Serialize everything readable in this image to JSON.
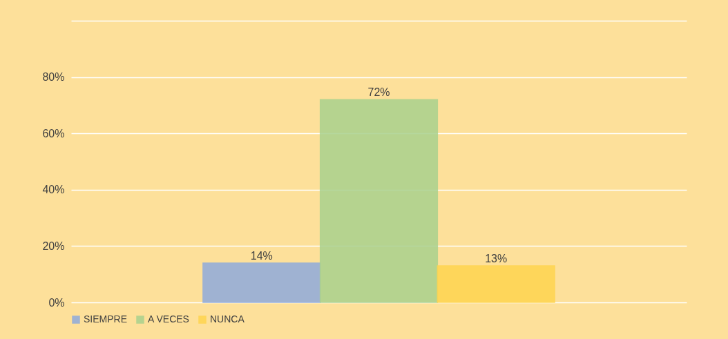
{
  "chart_data": {
    "type": "bar",
    "categories": [
      null
    ],
    "series": [
      {
        "name": "SIEMPRE",
        "color": "#8faadc",
        "values": [
          14
        ],
        "value_labels": [
          "14%"
        ]
      },
      {
        "name": "A VECES",
        "color": "#a9d18e",
        "values": [
          72
        ],
        "value_labels": [
          "72%"
        ]
      },
      {
        "name": "NUNCA",
        "color": "#ffd54f",
        "values": [
          13
        ],
        "value_labels": [
          "13%"
        ]
      }
    ],
    "ylim": [
      0,
      100
    ],
    "yticks": [
      {
        "value": 0,
        "label": "0%"
      },
      {
        "value": 20,
        "label": "20%"
      },
      {
        "value": 40,
        "label": "40%"
      },
      {
        "value": 60,
        "label": "60%"
      },
      {
        "value": 80,
        "label": "80%"
      },
      {
        "value": 100,
        "label": null
      }
    ],
    "grid": "y",
    "legend": "bottom",
    "tick_labels": "y"
  }
}
